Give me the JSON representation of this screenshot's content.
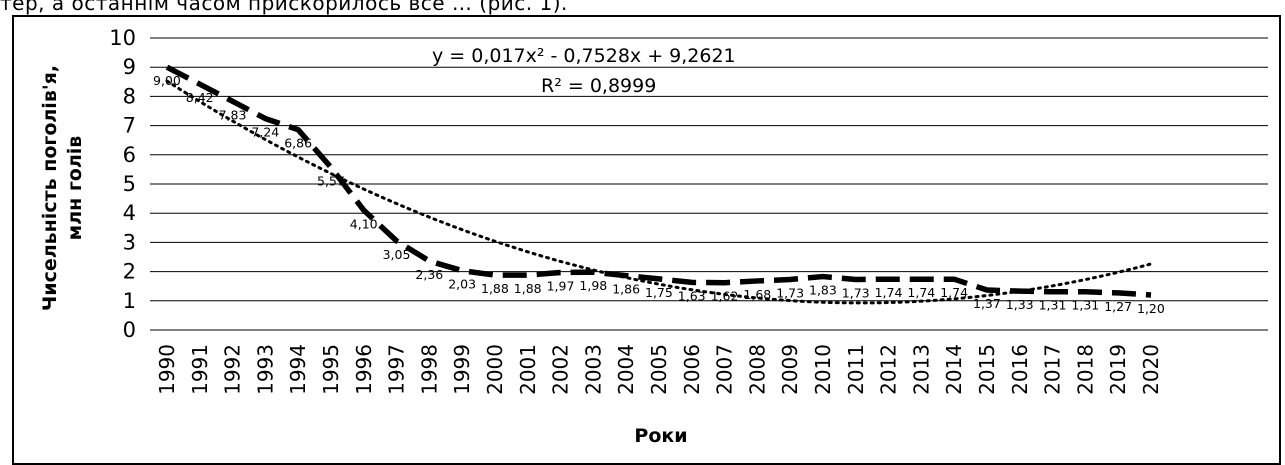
{
  "caption": "тер, а останнім часом прискорилось все … (рис. 1).",
  "chart_data": {
    "type": "line",
    "x": [
      1990,
      1991,
      1992,
      1993,
      1994,
      1995,
      1996,
      1997,
      1998,
      1999,
      2000,
      2001,
      2002,
      2003,
      2004,
      2005,
      2006,
      2007,
      2008,
      2009,
      2010,
      2011,
      2012,
      2013,
      2014,
      2015,
      2016,
      2017,
      2018,
      2019,
      2020
    ],
    "x_tick_labels": [
      "1990",
      "1991",
      "1992",
      "1993",
      "1994",
      "1995",
      "1996",
      "1997",
      "1998",
      "1999",
      "2000",
      "2001",
      "2002",
      "2003",
      "2004",
      "2005",
      "2006",
      "2007",
      "2008",
      "2009",
      "2010",
      "2011",
      "2012",
      "2013",
      "2014",
      "2015",
      "2016",
      "2017",
      "2018",
      "2019",
      "2020"
    ],
    "values": [
      9.0,
      8.42,
      7.83,
      7.24,
      6.86,
      5.57,
      4.1,
      3.05,
      2.36,
      2.03,
      1.88,
      1.88,
      1.97,
      1.98,
      1.86,
      1.75,
      1.63,
      1.62,
      1.68,
      1.73,
      1.83,
      1.73,
      1.74,
      1.74,
      1.74,
      1.37,
      1.33,
      1.31,
      1.31,
      1.27,
      1.2
    ],
    "value_labels": [
      "9,00",
      "8,42",
      "7,83",
      "7,24",
      "6,86",
      "5,57",
      "4,10",
      "3,05",
      "2,36",
      "2,03",
      "1,88",
      "1,88",
      "1,97",
      "1,98",
      "1,86",
      "1,75",
      "1,63",
      "1,62",
      "1,68",
      "1,73",
      "1,83",
      "1,73",
      "1,74",
      "1,74",
      "1,74",
      "1,37",
      "1,33",
      "1,31",
      "1,31",
      "1,27",
      "1,20"
    ],
    "series_style": "dashed",
    "trendline": {
      "type": "polynomial",
      "order": 2,
      "coefficients": [
        0.017,
        -0.7528,
        9.2621
      ],
      "style": "dotted",
      "equation": "y = 0,017x² - 0,7528x + 9,2621",
      "r_squared": "R² = 0,8999"
    },
    "ylim": [
      0,
      10
    ],
    "y_ticks": [
      0,
      1,
      2,
      3,
      4,
      5,
      6,
      7,
      8,
      9,
      10
    ],
    "y_tick_labels": [
      "0",
      "1",
      "2",
      "3",
      "4",
      "5",
      "6",
      "7",
      "8",
      "9",
      "10"
    ],
    "ylabel_line1": "Чисельність поголів'я,",
    "ylabel_line2": "млн голів",
    "xlabel": "Роки",
    "grid": "horizontal",
    "legend": "none",
    "colors": {
      "line": "#000000",
      "grid": "#000000",
      "background": "#ffffff"
    }
  }
}
